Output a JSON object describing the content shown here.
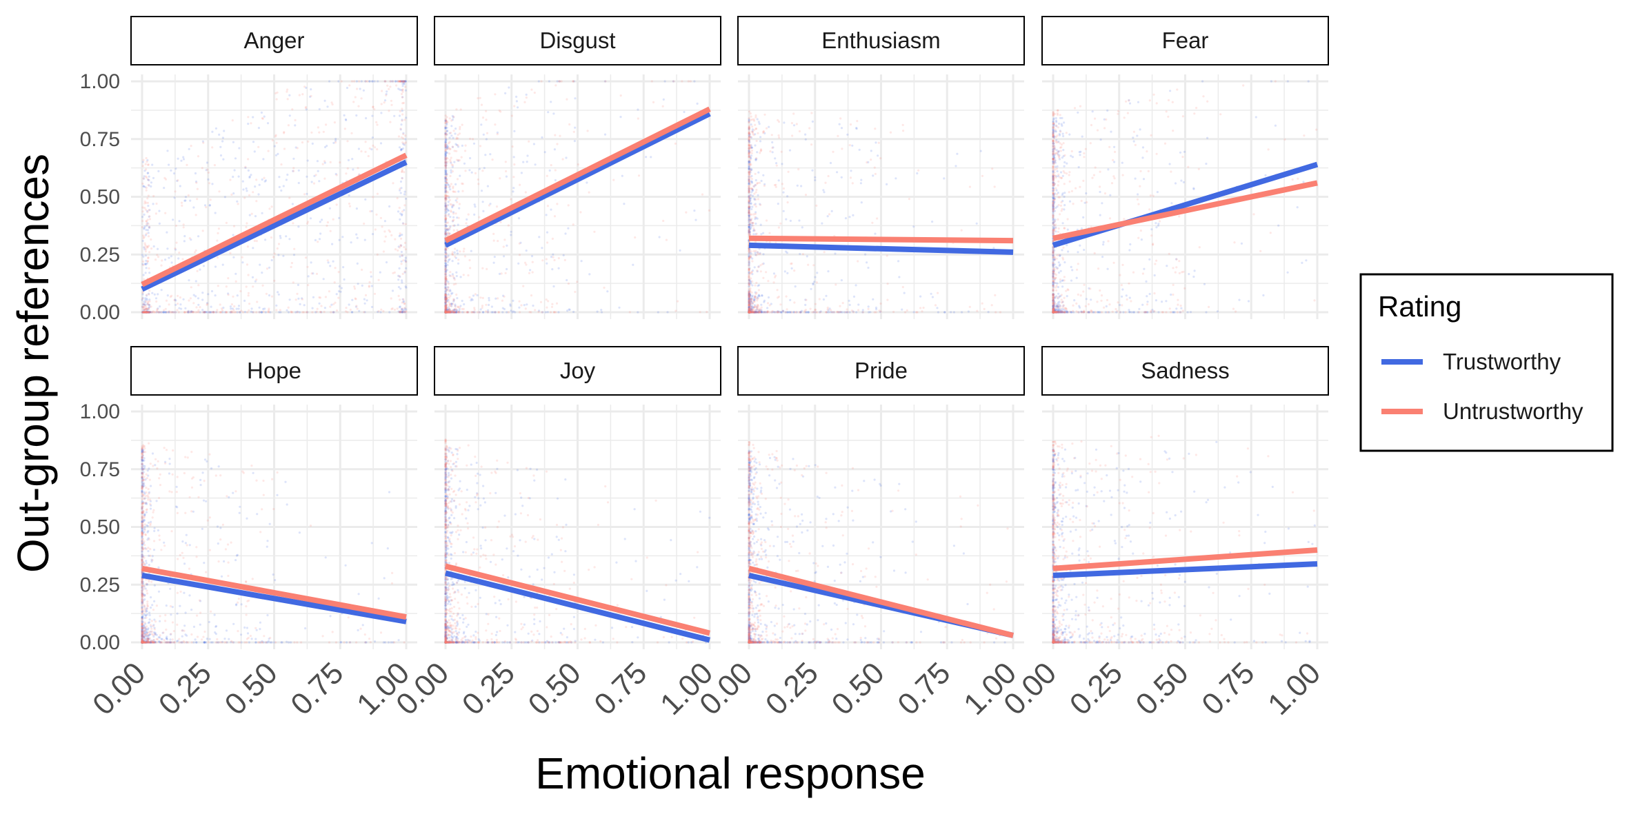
{
  "chart_data": {
    "type": "scatter",
    "facet_layout": "2 rows x 4 columns",
    "xlabel": "Emotional response",
    "ylabel": "Out-group references",
    "xlim": [
      0,
      1
    ],
    "ylim": [
      0,
      1
    ],
    "x_ticks": [
      "0.00",
      "0.25",
      "0.50",
      "0.75",
      "1.00"
    ],
    "y_ticks": [
      "0.00",
      "0.25",
      "0.50",
      "0.75",
      "1.00"
    ],
    "grid": true,
    "legend": {
      "title": "Rating",
      "placement": "right",
      "entries": [
        {
          "label": "Trustworthy",
          "color": "#4169E1"
        },
        {
          "label": "Untrustworthy",
          "color": "#FA8072"
        }
      ]
    },
    "facets": [
      {
        "name": "Anger",
        "trend_lines": [
          {
            "series": "Trustworthy",
            "x": [
              0,
              1
            ],
            "y": [
              0.1,
              0.65
            ]
          },
          {
            "series": "Untrustworthy",
            "x": [
              0,
              1
            ],
            "y": [
              0.12,
              0.68
            ]
          }
        ]
      },
      {
        "name": "Disgust",
        "trend_lines": [
          {
            "series": "Trustworthy",
            "x": [
              0,
              1
            ],
            "y": [
              0.29,
              0.86
            ]
          },
          {
            "series": "Untrustworthy",
            "x": [
              0,
              1
            ],
            "y": [
              0.31,
              0.88
            ]
          }
        ]
      },
      {
        "name": "Enthusiasm",
        "trend_lines": [
          {
            "series": "Trustworthy",
            "x": [
              0,
              1
            ],
            "y": [
              0.29,
              0.26
            ]
          },
          {
            "series": "Untrustworthy",
            "x": [
              0,
              1
            ],
            "y": [
              0.32,
              0.31
            ]
          }
        ]
      },
      {
        "name": "Fear",
        "trend_lines": [
          {
            "series": "Trustworthy",
            "x": [
              0,
              1
            ],
            "y": [
              0.29,
              0.64
            ]
          },
          {
            "series": "Untrustworthy",
            "x": [
              0,
              1
            ],
            "y": [
              0.32,
              0.56
            ]
          }
        ]
      },
      {
        "name": "Hope",
        "trend_lines": [
          {
            "series": "Trustworthy",
            "x": [
              0,
              1
            ],
            "y": [
              0.29,
              0.09
            ]
          },
          {
            "series": "Untrustworthy",
            "x": [
              0,
              1
            ],
            "y": [
              0.32,
              0.11
            ]
          }
        ]
      },
      {
        "name": "Joy",
        "trend_lines": [
          {
            "series": "Trustworthy",
            "x": [
              0,
              1
            ],
            "y": [
              0.3,
              0.01
            ]
          },
          {
            "series": "Untrustworthy",
            "x": [
              0,
              1
            ],
            "y": [
              0.33,
              0.04
            ]
          }
        ]
      },
      {
        "name": "Pride",
        "trend_lines": [
          {
            "series": "Trustworthy",
            "x": [
              0,
              1
            ],
            "y": [
              0.29,
              0.03
            ]
          },
          {
            "series": "Untrustworthy",
            "x": [
              0,
              1
            ],
            "y": [
              0.32,
              0.03
            ]
          }
        ]
      },
      {
        "name": "Sadness",
        "trend_lines": [
          {
            "series": "Trustworthy",
            "x": [
              0,
              1
            ],
            "y": [
              0.29,
              0.34
            ]
          },
          {
            "series": "Untrustworthy",
            "x": [
              0,
              1
            ],
            "y": [
              0.32,
              0.4
            ]
          }
        ]
      }
    ]
  }
}
